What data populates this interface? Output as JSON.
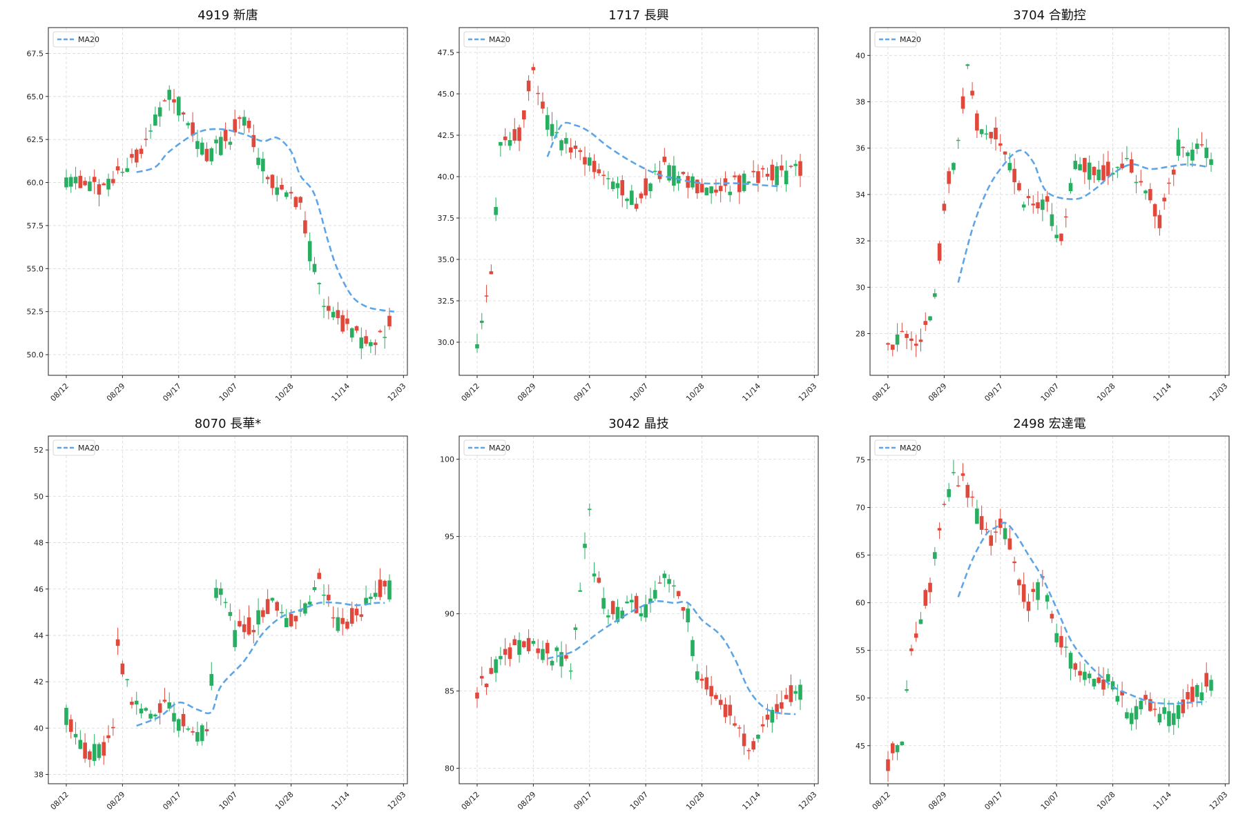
{
  "colors": {
    "up": "#e0483c",
    "down": "#27ae60",
    "ma": "#5da5e6",
    "grid": "#d8d8d8",
    "frame": "#222222"
  },
  "x_tick_labels": [
    "08/12",
    "08/29",
    "09/17",
    "10/07",
    "10/28",
    "11/14",
    "12/03"
  ],
  "legend_label": "MA20",
  "chart_data": [
    {
      "type": "candlestick",
      "title": "4919 新唐",
      "ylim": [
        48.8,
        69.0
      ],
      "yticks": [
        50.0,
        52.5,
        55.0,
        57.5,
        60.0,
        62.5,
        65.0,
        67.5
      ],
      "ytick_decimals": 1,
      "legend": "top-left",
      "grid": true,
      "anchors": [
        [
          0,
          60
        ],
        [
          8,
          59.5
        ],
        [
          14,
          61
        ],
        [
          22,
          65.5
        ],
        [
          30,
          61.5
        ],
        [
          38,
          63.5
        ],
        [
          44,
          59.8
        ],
        [
          50,
          58.5
        ],
        [
          55,
          52.5
        ],
        [
          60,
          51.5
        ],
        [
          65,
          50.5
        ],
        [
          73,
          53
        ]
      ],
      "ma_anchors": [
        [
          15,
          60.6
        ],
        [
          19,
          60.9
        ],
        [
          22,
          61.8
        ],
        [
          28,
          62.9
        ],
        [
          33,
          63.1
        ],
        [
          38,
          62.8
        ],
        [
          42,
          62.4
        ],
        [
          45,
          62.6
        ],
        [
          48,
          61.8
        ],
        [
          50,
          60.4
        ],
        [
          53,
          59.3
        ],
        [
          56,
          56.5
        ],
        [
          58,
          54.9
        ],
        [
          61,
          53.4
        ],
        [
          64,
          52.8
        ],
        [
          67,
          52.6
        ],
        [
          70,
          52.5
        ]
      ]
    },
    {
      "type": "candlestick",
      "title": "1717 長興",
      "ylim": [
        28.0,
        49.0
      ],
      "yticks": [
        30.0,
        32.5,
        35.0,
        37.5,
        40.0,
        42.5,
        45.0,
        47.5
      ],
      "ytick_decimals": 1,
      "legend": "top-left",
      "grid": true,
      "anchors": [
        [
          0,
          29.5
        ],
        [
          3,
          34.5
        ],
        [
          5,
          42
        ],
        [
          9,
          42.5
        ],
        [
          12,
          46.5
        ],
        [
          15,
          43.5
        ],
        [
          20,
          41.5
        ],
        [
          26,
          40.5
        ],
        [
          34,
          38.5
        ],
        [
          40,
          40.5
        ],
        [
          46,
          39.5
        ],
        [
          55,
          39.5
        ],
        [
          63,
          40.2
        ],
        [
          68,
          40.3
        ]
      ],
      "ma_anchors": [
        [
          15,
          41.2
        ],
        [
          18,
          43.1
        ],
        [
          21,
          43.1
        ],
        [
          24,
          42.7
        ],
        [
          28,
          41.8
        ],
        [
          33,
          40.9
        ],
        [
          38,
          40.2
        ],
        [
          42,
          39.9
        ],
        [
          48,
          39.6
        ],
        [
          55,
          39.6
        ],
        [
          60,
          39.5
        ],
        [
          65,
          39.4
        ]
      ]
    },
    {
      "type": "candlestick",
      "title": "3704 合勤控",
      "ylim": [
        26.2,
        41.2
      ],
      "yticks": [
        28,
        30,
        32,
        34,
        36,
        38,
        40
      ],
      "ytick_decimals": 0,
      "legend": "top-left",
      "grid": true,
      "anchors": [
        [
          0,
          27.2
        ],
        [
          4,
          28
        ],
        [
          7,
          27.5
        ],
        [
          10,
          29.5
        ],
        [
          12,
          33.5
        ],
        [
          15,
          36.5
        ],
        [
          17,
          39.5
        ],
        [
          19,
          37
        ],
        [
          23,
          36.5
        ],
        [
          26,
          35
        ],
        [
          30,
          33.5
        ],
        [
          34,
          33.5
        ],
        [
          37,
          32.2
        ],
        [
          40,
          35.5
        ],
        [
          46,
          34.8
        ],
        [
          50,
          35.5
        ],
        [
          55,
          34.5
        ],
        [
          58,
          32.8
        ],
        [
          62,
          36
        ],
        [
          68,
          35.8
        ]
      ],
      "ma_anchors": [
        [
          15,
          30.2
        ],
        [
          18,
          32.5
        ],
        [
          21,
          34.1
        ],
        [
          24,
          35.1
        ],
        [
          28,
          35.9
        ],
        [
          31,
          35.4
        ],
        [
          34,
          34.1
        ],
        [
          40,
          33.8
        ],
        [
          44,
          34.2
        ],
        [
          48,
          34.9
        ],
        [
          52,
          35.3
        ],
        [
          56,
          35.1
        ],
        [
          60,
          35.2
        ],
        [
          64,
          35.3
        ],
        [
          68,
          35.2
        ]
      ]
    },
    {
      "type": "candlestick",
      "title": "8070 長華*",
      "ylim": [
        37.6,
        52.6
      ],
      "yticks": [
        38,
        40,
        42,
        44,
        46,
        48,
        50,
        52
      ],
      "ytick_decimals": 0,
      "legend": "top-left",
      "grid": true,
      "anchors": [
        [
          0,
          40.5
        ],
        [
          4,
          39
        ],
        [
          8,
          39
        ],
        [
          10,
          40
        ],
        [
          11,
          43.5
        ],
        [
          14,
          41
        ],
        [
          18,
          40.5
        ],
        [
          22,
          41
        ],
        [
          26,
          39.8
        ],
        [
          30,
          40
        ],
        [
          31,
          42
        ],
        [
          32,
          46
        ],
        [
          34,
          45.5
        ],
        [
          36,
          44
        ],
        [
          40,
          44.5
        ],
        [
          44,
          45.5
        ],
        [
          48,
          44.5
        ],
        [
          52,
          45.5
        ],
        [
          54,
          46.5
        ],
        [
          58,
          44.5
        ],
        [
          62,
          44.8
        ],
        [
          66,
          46
        ],
        [
          68,
          46
        ]
      ],
      "ma_anchors": [
        [
          15,
          40.1
        ],
        [
          20,
          40.5
        ],
        [
          24,
          41.1
        ],
        [
          28,
          40.8
        ],
        [
          31,
          40.7
        ],
        [
          33,
          41.8
        ],
        [
          38,
          42.9
        ],
        [
          42,
          44.1
        ],
        [
          46,
          44.8
        ],
        [
          50,
          45.1
        ],
        [
          54,
          45.4
        ],
        [
          58,
          45.4
        ],
        [
          62,
          45.3
        ],
        [
          66,
          45.4
        ],
        [
          68,
          45.4
        ]
      ]
    },
    {
      "type": "candlestick",
      "title": "3042 晶技",
      "ylim": [
        79.0,
        101.5
      ],
      "yticks": [
        80,
        85,
        90,
        95,
        100
      ],
      "ytick_decimals": 0,
      "legend": "top-left",
      "grid": true,
      "anchors": [
        [
          0,
          85
        ],
        [
          5,
          87
        ],
        [
          10,
          88.2
        ],
        [
          14,
          87.5
        ],
        [
          18,
          87.2
        ],
        [
          20,
          86.5
        ],
        [
          22,
          92
        ],
        [
          24,
          97
        ],
        [
          25,
          93
        ],
        [
          28,
          90
        ],
        [
          32,
          90.5
        ],
        [
          36,
          90.5
        ],
        [
          40,
          92.5
        ],
        [
          42,
          92
        ],
        [
          45,
          90
        ],
        [
          47,
          86
        ],
        [
          50,
          85
        ],
        [
          52,
          84
        ],
        [
          55,
          83
        ],
        [
          58,
          81
        ],
        [
          62,
          83.5
        ],
        [
          65,
          84
        ],
        [
          68,
          85
        ]
      ],
      "ma_anchors": [
        [
          15,
          87.1
        ],
        [
          20,
          87.5
        ],
        [
          23,
          88.1
        ],
        [
          26,
          88.8
        ],
        [
          30,
          89.6
        ],
        [
          34,
          90.3
        ],
        [
          38,
          90.8
        ],
        [
          42,
          90.7
        ],
        [
          45,
          90.7
        ],
        [
          48,
          89.6
        ],
        [
          52,
          88.6
        ],
        [
          55,
          87.1
        ],
        [
          58,
          85.1
        ],
        [
          61,
          84
        ],
        [
          64,
          83.6
        ],
        [
          68,
          83.5
        ]
      ]
    },
    {
      "type": "candlestick",
      "title": "2498 宏達電",
      "ylim": [
        41.0,
        77.5
      ],
      "yticks": [
        45,
        50,
        55,
        60,
        65,
        70,
        75
      ],
      "ytick_decimals": 0,
      "legend": "top-left",
      "grid": true,
      "anchors": [
        [
          0,
          43
        ],
        [
          3,
          46
        ],
        [
          5,
          55
        ],
        [
          9,
          62
        ],
        [
          12,
          70
        ],
        [
          14,
          73
        ],
        [
          16,
          73
        ],
        [
          19,
          69
        ],
        [
          22,
          66
        ],
        [
          24,
          68.5
        ],
        [
          26,
          66
        ],
        [
          28,
          62
        ],
        [
          30,
          60
        ],
        [
          33,
          62
        ],
        [
          36,
          57
        ],
        [
          39,
          54
        ],
        [
          44,
          52
        ],
        [
          48,
          51.5
        ],
        [
          52,
          48
        ],
        [
          55,
          50
        ],
        [
          57,
          49
        ],
        [
          60,
          48
        ],
        [
          64,
          49.5
        ],
        [
          68,
          51.5
        ]
      ],
      "ma_anchors": [
        [
          15,
          60.6
        ],
        [
          18,
          64.5
        ],
        [
          21,
          67.2
        ],
        [
          23,
          67.9
        ],
        [
          25,
          68.4
        ],
        [
          27,
          67.4
        ],
        [
          30,
          65
        ],
        [
          33,
          62.6
        ],
        [
          36,
          59.4
        ],
        [
          39,
          56.1
        ],
        [
          42,
          54
        ],
        [
          45,
          52.5
        ],
        [
          48,
          51.2
        ],
        [
          52,
          50.3
        ],
        [
          56,
          49.6
        ],
        [
          60,
          49.4
        ],
        [
          64,
          49.5
        ],
        [
          68,
          49.6
        ]
      ]
    }
  ]
}
